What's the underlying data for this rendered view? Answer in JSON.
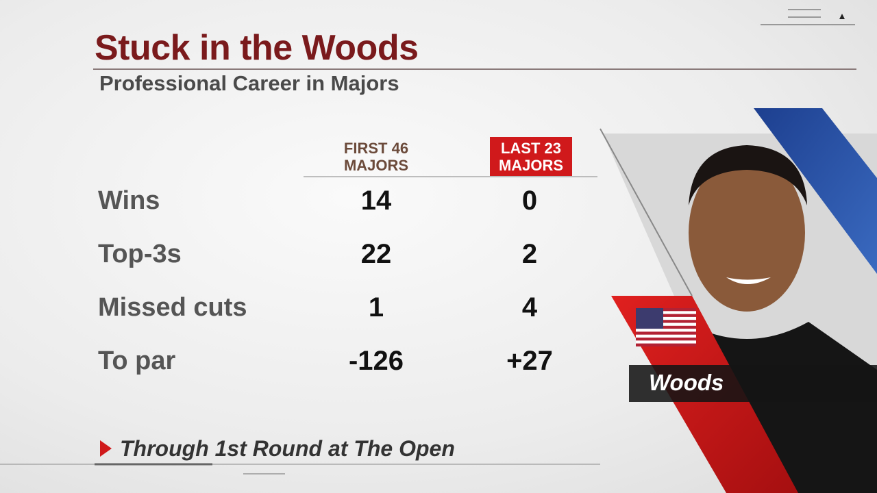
{
  "header": {
    "title": "Stuck in the Woods",
    "subtitle": "Professional Career in Majors"
  },
  "table": {
    "columns": [
      "FIRST 46 MAJORS",
      "LAST 23 MAJORS"
    ],
    "rows": [
      {
        "label": "Wins",
        "values": [
          "14",
          "0"
        ]
      },
      {
        "label": "Top-3s",
        "values": [
          "22",
          "2"
        ]
      },
      {
        "label": "Missed cuts",
        "values": [
          "1",
          "4"
        ]
      },
      {
        "label": "To par",
        "values": [
          "-126",
          "+27"
        ]
      }
    ]
  },
  "player": {
    "name": "Woods"
  },
  "footnote": "Through 1st Round at The Open"
}
